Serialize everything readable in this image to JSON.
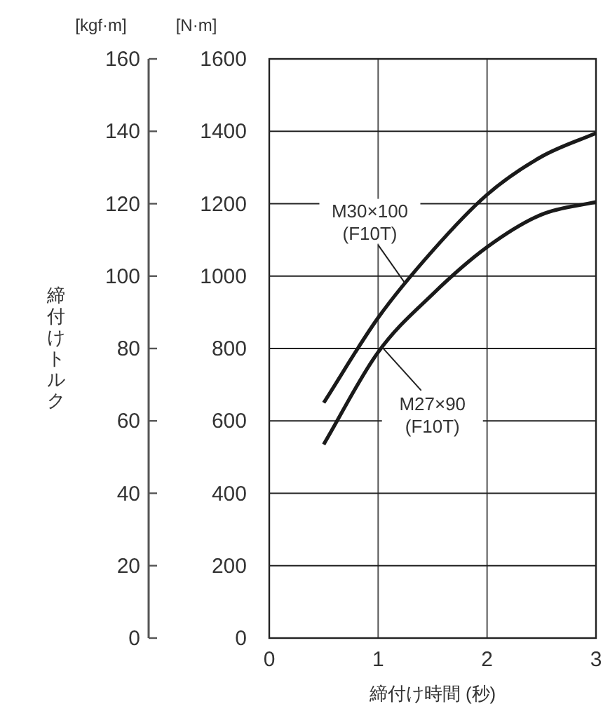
{
  "chart_data": {
    "type": "line",
    "xlabel": "締付け時間 (秒)",
    "ylabel": "締付けトルク",
    "y2label": "[N·m]",
    "xlim": [
      0,
      3
    ],
    "xticks": [
      0,
      1,
      2,
      3
    ],
    "ylim": [
      0,
      160
    ],
    "yticks": [
      0,
      20,
      40,
      60,
      80,
      100,
      120,
      140,
      160
    ],
    "y2lim": [
      0,
      1600
    ],
    "y2ticks": [
      0,
      200,
      400,
      600,
      800,
      1000,
      1200,
      1400,
      1600
    ],
    "grid": true,
    "line_style": "solid",
    "marker": "none",
    "series": [
      {
        "name": "M30×100\n(F10T)",
        "color": "#1a1a1a",
        "axis": "y2",
        "x": [
          0.5,
          1,
          1.5,
          2,
          2.5,
          3
        ],
        "values": [
          650,
          885,
          1070,
          1225,
          1330,
          1395
        ]
      },
      {
        "name": "M27×90\n(F10T)",
        "color": "#1a1a1a",
        "axis": "y2",
        "x": [
          0.5,
          1,
          1.5,
          2,
          2.5,
          3
        ],
        "values": [
          535,
          790,
          950,
          1080,
          1170,
          1205
        ]
      }
    ],
    "annotations": [
      "[kgf·m]"
    ]
  }
}
